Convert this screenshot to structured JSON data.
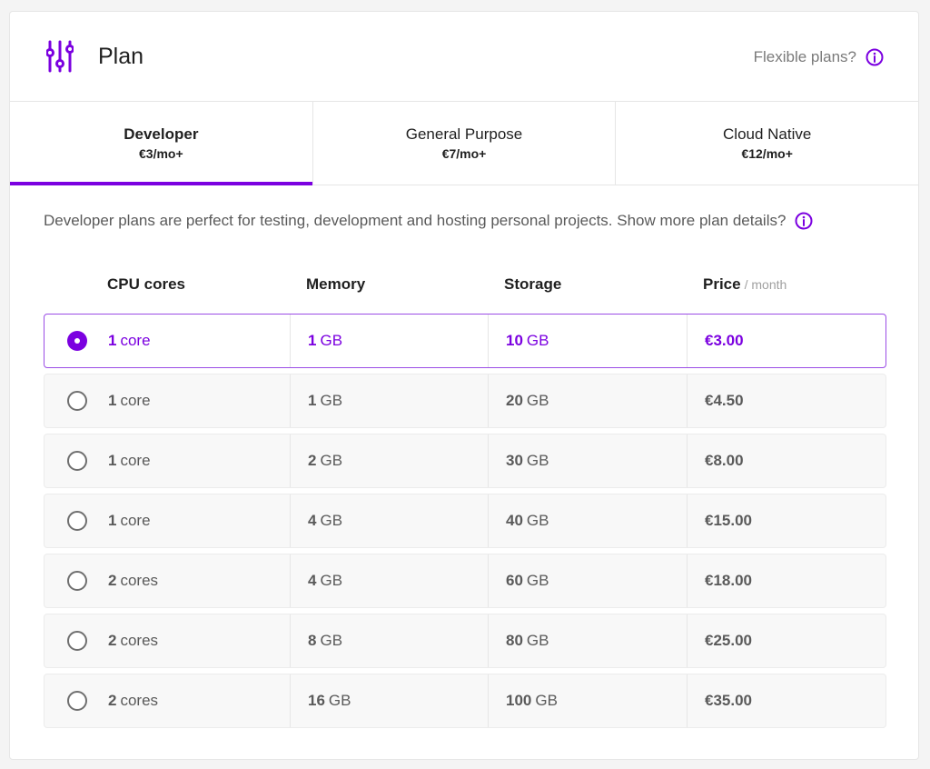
{
  "header": {
    "title": "Plan",
    "flexible_label": "Flexible plans?",
    "icon": "sliders-icon",
    "info_icon": "info-icon"
  },
  "tabs": [
    {
      "name": "Developer",
      "price": "€3/mo+",
      "active": true
    },
    {
      "name": "General Purpose",
      "price": "€7/mo+",
      "active": false
    },
    {
      "name": "Cloud Native",
      "price": "€12/mo+",
      "active": false
    }
  ],
  "description": "Developer plans are perfect for testing, development and hosting personal projects. Show more plan details?",
  "table": {
    "headers": {
      "cpu": "CPU cores",
      "memory": "Memory",
      "storage": "Storage",
      "price": "Price",
      "price_period": "/ month"
    },
    "rows": [
      {
        "cpu_num": "1",
        "cpu_unit": "core",
        "mem_num": "1",
        "mem_unit": "GB",
        "sto_num": "10",
        "sto_unit": "GB",
        "price": "€3.00",
        "selected": true
      },
      {
        "cpu_num": "1",
        "cpu_unit": "core",
        "mem_num": "1",
        "mem_unit": "GB",
        "sto_num": "20",
        "sto_unit": "GB",
        "price": "€4.50",
        "selected": false
      },
      {
        "cpu_num": "1",
        "cpu_unit": "core",
        "mem_num": "2",
        "mem_unit": "GB",
        "sto_num": "30",
        "sto_unit": "GB",
        "price": "€8.00",
        "selected": false
      },
      {
        "cpu_num": "1",
        "cpu_unit": "core",
        "mem_num": "4",
        "mem_unit": "GB",
        "sto_num": "40",
        "sto_unit": "GB",
        "price": "€15.00",
        "selected": false
      },
      {
        "cpu_num": "2",
        "cpu_unit": "cores",
        "mem_num": "4",
        "mem_unit": "GB",
        "sto_num": "60",
        "sto_unit": "GB",
        "price": "€18.00",
        "selected": false
      },
      {
        "cpu_num": "2",
        "cpu_unit": "cores",
        "mem_num": "8",
        "mem_unit": "GB",
        "sto_num": "80",
        "sto_unit": "GB",
        "price": "€25.00",
        "selected": false
      },
      {
        "cpu_num": "2",
        "cpu_unit": "cores",
        "mem_num": "16",
        "mem_unit": "GB",
        "sto_num": "100",
        "sto_unit": "GB",
        "price": "€35.00",
        "selected": false
      }
    ]
  },
  "colors": {
    "accent": "#7b00e0",
    "selected_border": "#9b4de6",
    "row_background": "#f8f8f8",
    "muted_text": "#5a5a5a"
  }
}
